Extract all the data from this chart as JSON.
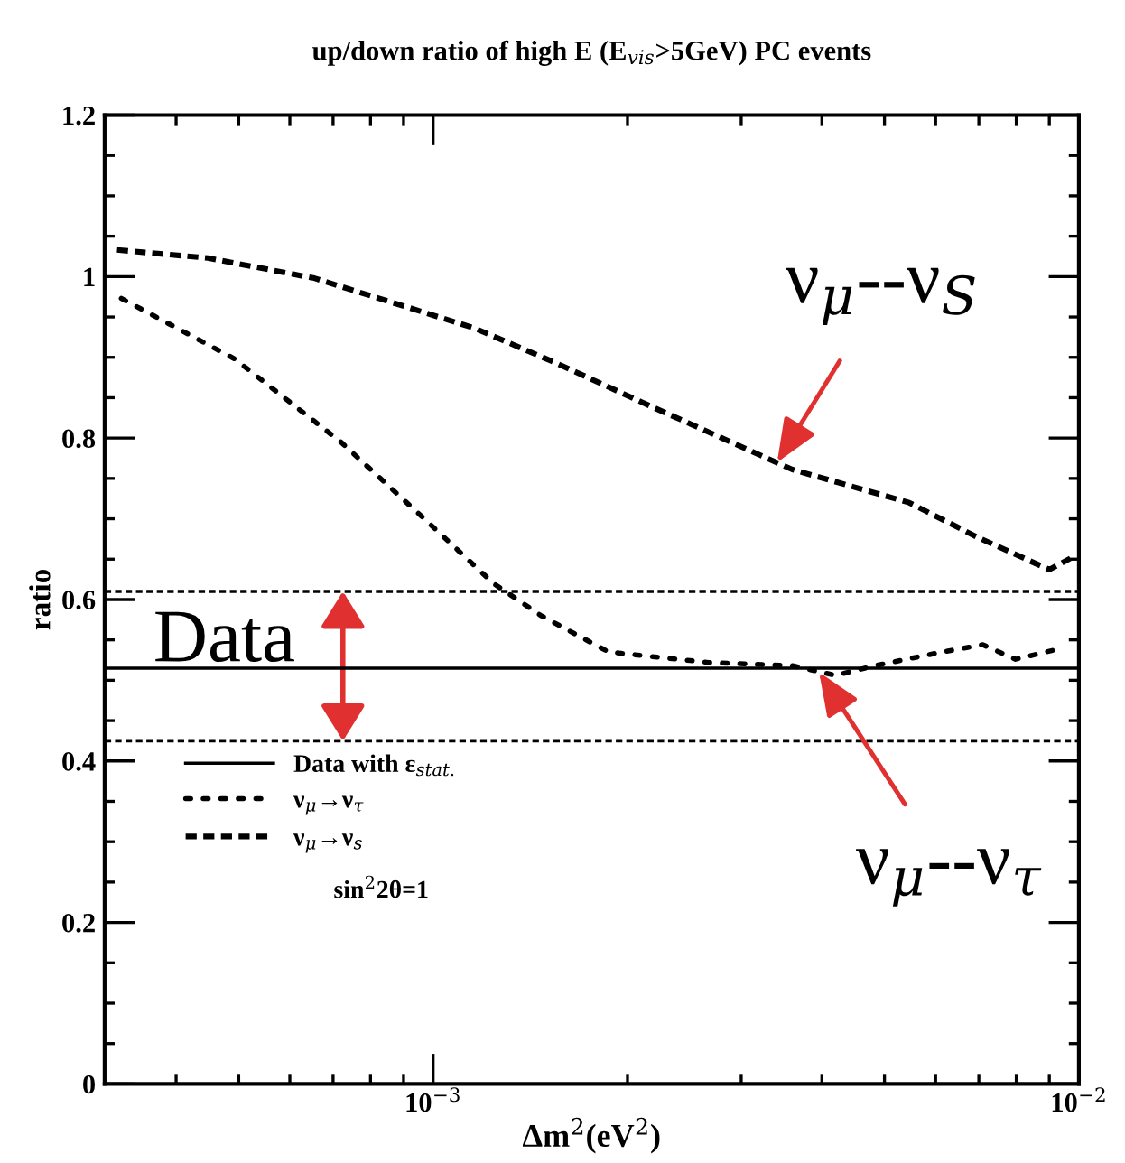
{
  "chart_data": {
    "type": "line",
    "title": "up/down ratio of high E (E$_{vis}$>5GeV) PC events",
    "xlabel": "Δm$^{2}$(eV$^{2}$)",
    "ylabel": "ratio",
    "log": "x",
    "xlim": [
      0.00031,
      0.01
    ],
    "xticks": [
      {
        "value": 0.0004,
        "label": null
      },
      {
        "value": 0.0005,
        "label": null
      },
      {
        "value": 0.0006,
        "label": null
      },
      {
        "value": 0.0007,
        "label": null
      },
      {
        "value": 0.0008,
        "label": null
      },
      {
        "value": 0.0009,
        "label": null
      },
      {
        "value": 0.001,
        "label": "10$^{−3}$"
      },
      {
        "value": 0.002,
        "label": null
      },
      {
        "value": 0.003,
        "label": null
      },
      {
        "value": 0.004,
        "label": null
      },
      {
        "value": 0.005,
        "label": null
      },
      {
        "value": 0.006,
        "label": null
      },
      {
        "value": 0.007,
        "label": null
      },
      {
        "value": 0.008,
        "label": null
      },
      {
        "value": 0.009,
        "label": null
      },
      {
        "value": 0.01,
        "label": "10$^{−2}$"
      }
    ],
    "ylim": [
      0,
      1.2
    ],
    "yticks": [
      0,
      {
        "value": 0.05,
        "label": null
      },
      {
        "value": 0.1,
        "label": null
      },
      {
        "value": 0.15,
        "label": null
      },
      0.2,
      {
        "value": 0.25,
        "label": null
      },
      {
        "value": 0.3,
        "label": null
      },
      {
        "value": 0.35,
        "label": null
      },
      0.4,
      {
        "value": 0.45,
        "label": null
      },
      {
        "value": 0.5,
        "label": null
      },
      {
        "value": 0.55,
        "label": null
      },
      0.6,
      {
        "value": 0.65,
        "label": null
      },
      {
        "value": 0.7,
        "label": null
      },
      {
        "value": 0.75,
        "label": null
      },
      0.8,
      {
        "value": 0.85,
        "label": null
      },
      {
        "value": 0.9,
        "label": null
      },
      {
        "value": 0.95,
        "label": null
      },
      1,
      {
        "value": 1.05,
        "label": null
      },
      {
        "value": 1.1,
        "label": null
      },
      {
        "value": 1.15,
        "label": null
      },
      1.2
    ],
    "grid": false,
    "legend": "bottom left",
    "series": [
      {
        "name": "ν$_{μ}$→ν$_{τ}$",
        "color": "#000000",
        "line_style": "dotted",
        "x": [
          0.000329,
          0.000493,
          0.00072,
          0.00096,
          0.00124,
          0.00147,
          0.00187,
          0.00267,
          0.0036,
          0.0042,
          0.00483,
          0.00614,
          0.0071,
          0.00798,
          0.00944
        ],
        "values": [
          0.973,
          0.898,
          0.795,
          0.703,
          0.62,
          0.58,
          0.535,
          0.522,
          0.518,
          0.506,
          0.518,
          0.535,
          0.544,
          0.526,
          0.54
        ]
      },
      {
        "name": "ν$_{μ}$→ν$_{s}$",
        "color": "#000000",
        "line_style": "dashed",
        "x": [
          0.000324,
          0.000448,
          0.000655,
          0.00116,
          0.00155,
          0.00211,
          0.0028,
          0.0036,
          0.00546,
          0.00693,
          0.009,
          0.0097
        ],
        "values": [
          1.033,
          1.023,
          0.998,
          0.936,
          0.893,
          0.844,
          0.8,
          0.761,
          0.72,
          0.678,
          0.637,
          0.651
        ]
      }
    ],
    "ref_lines": [
      {
        "axis": "y",
        "value": 0.61,
        "color": "#000000",
        "line_style": "dashed"
      },
      {
        "axis": "y",
        "value": 0.515,
        "color": "#000000",
        "line_style": "solid",
        "label": "Data with ε$_{stat.}$"
      },
      {
        "axis": "y",
        "value": 0.425,
        "color": "#000000",
        "line_style": "dashed"
      }
    ],
    "annotations": [
      "Data",
      {
        "text": "ν$_{μ}$--ν$_{S}$",
        "x": 0.00341,
        "y": 0.77
      },
      {
        "text": "ν$_{μ}$--ν$_{τ}$",
        "x": 0.00396,
        "y": 0.51
      },
      "sin$^{2}$2θ=1"
    ]
  }
}
